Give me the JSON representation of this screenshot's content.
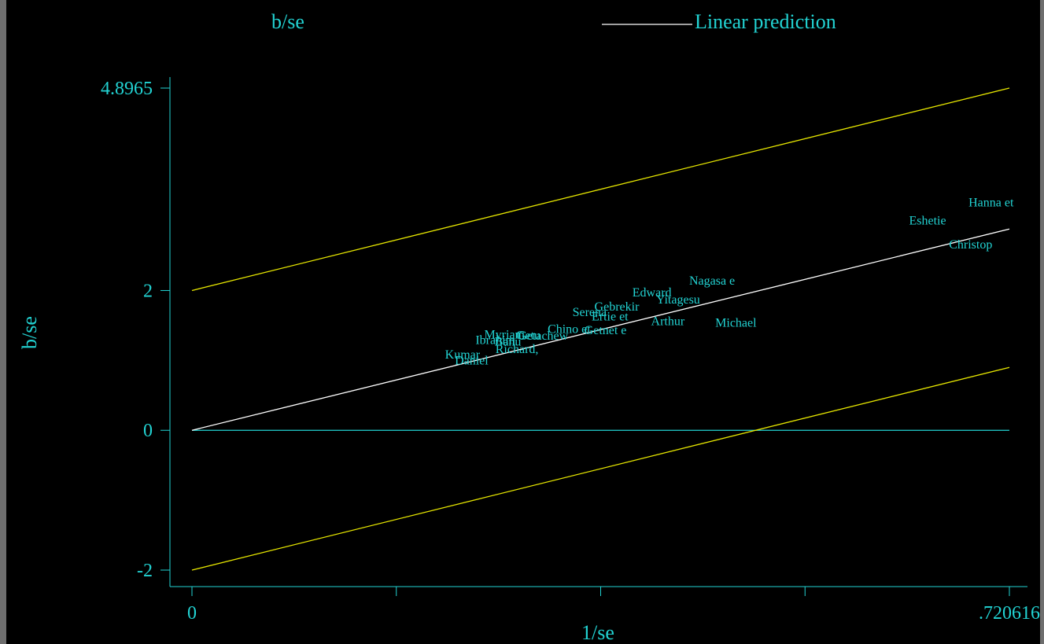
{
  "chart_data": {
    "type": "scatter",
    "title_left": "b/se",
    "legend": [
      {
        "label": "Linear prediction",
        "color": "#ffffff"
      }
    ],
    "xlabel": "1/se",
    "ylabel": "b/se",
    "xlim": [
      0,
      0.720616
    ],
    "ylim": [
      -2,
      4.8965
    ],
    "xticks": [
      {
        "value": 0,
        "label": "0"
      },
      {
        "value": 0.180154,
        "label": ""
      },
      {
        "value": 0.360308,
        "label": ""
      },
      {
        "value": 0.540462,
        "label": ""
      },
      {
        "value": 0.720616,
        "label": ".720616"
      }
    ],
    "yticks": [
      {
        "value": -2,
        "label": "-2"
      },
      {
        "value": 0,
        "label": "0"
      },
      {
        "value": 2,
        "label": "2"
      },
      {
        "value": 4.8965,
        "label": "4.8965"
      }
    ],
    "reference_line": {
      "y": 0,
      "color": "#22d3d3"
    },
    "fit_line": {
      "x": [
        0,
        0.720616
      ],
      "y": [
        0,
        2.88
      ],
      "color": "#ffffff"
    },
    "ci_upper": {
      "x": [
        0,
        0.720616
      ],
      "y": [
        2,
        4.8965
      ],
      "color": "#e6e600"
    },
    "ci_lower": {
      "x": [
        0,
        0.720616
      ],
      "y": [
        -2,
        0.9
      ],
      "color": "#e6e600"
    },
    "points": [
      {
        "label": "Hanna et",
        "x": 0.7045,
        "y": 3.26
      },
      {
        "label": "Eshetie",
        "x": 0.6485,
        "y": 3.0
      },
      {
        "label": "Christop",
        "x": 0.6865,
        "y": 2.66
      },
      {
        "label": "Nagasa e",
        "x": 0.4585,
        "y": 2.14
      },
      {
        "label": "Edward",
        "x": 0.4055,
        "y": 1.97
      },
      {
        "label": "Yitagesu",
        "x": 0.4285,
        "y": 1.87
      },
      {
        "label": "Gebrekir",
        "x": 0.3745,
        "y": 1.77
      },
      {
        "label": "Serena",
        "x": 0.3505,
        "y": 1.69
      },
      {
        "label": "Ertie et",
        "x": 0.3685,
        "y": 1.63
      },
      {
        "label": "Arthur",
        "x": 0.4195,
        "y": 1.56
      },
      {
        "label": "Michael",
        "x": 0.4795,
        "y": 1.54
      },
      {
        "label": "Chino et",
        "x": 0.3325,
        "y": 1.45
      },
      {
        "label": "Getnet e",
        "x": 0.3645,
        "y": 1.43
      },
      {
        "label": "Getachew",
        "x": 0.3095,
        "y": 1.35
      },
      {
        "label": "Myriam",
        "x": 0.2755,
        "y": 1.37
      },
      {
        "label": "Getu",
        "x": 0.2965,
        "y": 1.36
      },
      {
        "label": "Ibrahim",
        "x": 0.2675,
        "y": 1.29
      },
      {
        "label": "Banu",
        "x": 0.2785,
        "y": 1.27
      },
      {
        "label": "Richard,",
        "x": 0.2865,
        "y": 1.16
      },
      {
        "label": "Kumar",
        "x": 0.2385,
        "y": 1.08
      },
      {
        "label": "Daniel",
        "x": 0.2465,
        "y": 1.0
      }
    ]
  },
  "colors": {
    "background": "#000000",
    "axis": "#22d3d3",
    "text": "#22d3d3",
    "fit": "#ffffff",
    "ci": "#e6e600"
  }
}
